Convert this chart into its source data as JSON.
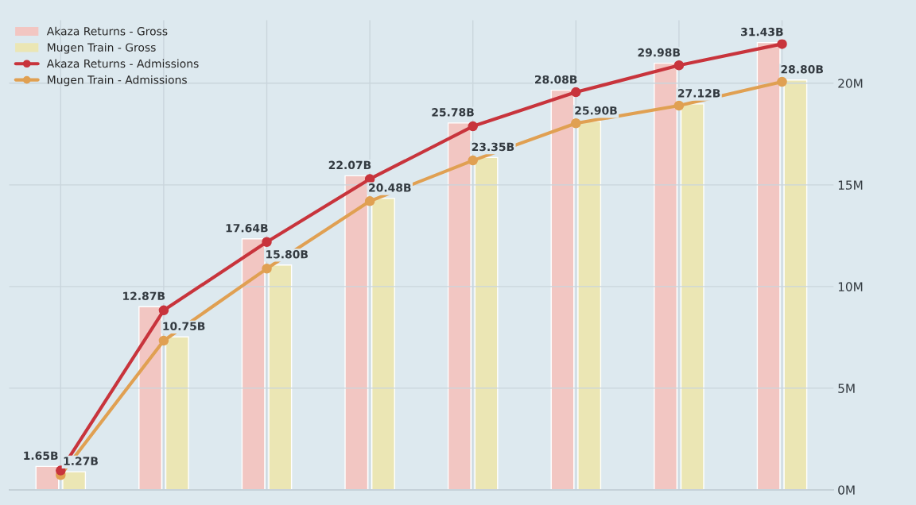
{
  "chart_data": {
    "type": "bar",
    "categories": [
      null,
      null,
      null,
      null,
      null,
      null,
      null,
      null
    ],
    "series": [
      {
        "name": "Akaza Returns - Gross",
        "color": "#f2c6c2",
        "values": [
          1.65,
          12.87,
          17.64,
          22.07,
          25.78,
          28.08,
          29.98,
          31.43
        ],
        "value_labels": [
          "1.65B",
          "12.87B",
          "17.64B",
          "22.07B",
          "25.78B",
          "28.08B",
          "29.98B",
          "31.43B"
        ]
      },
      {
        "name": "Mugen Train - Gross",
        "color": "#ebe6b4",
        "values": [
          1.27,
          10.75,
          15.8,
          20.48,
          23.35,
          25.9,
          27.12,
          28.8
        ],
        "value_labels": [
          "1.27B",
          "10.75B",
          "15.80B",
          "20.48B",
          "23.35B",
          "25.90B",
          "27.12B",
          "28.80B"
        ]
      },
      {
        "name": "Akaza Returns - Admissions",
        "type": "line",
        "axis": "y2",
        "color": "#c8343c",
        "marker": "circle",
        "values": [
          0.95,
          8.83,
          12.19,
          15.29,
          17.88,
          19.56,
          20.88,
          21.93
        ]
      },
      {
        "name": "Mugen Train - Admissions",
        "type": "line",
        "axis": "y2",
        "color": "#e0a052",
        "marker": "circle",
        "values": [
          0.73,
          7.34,
          10.88,
          14.2,
          16.2,
          18.03,
          18.9,
          20.07
        ]
      }
    ],
    "y2lim": [
      0,
      23.1
    ],
    "y2ticks": [
      {
        "value": 0,
        "label": "0M"
      },
      {
        "value": 5,
        "label": "5M"
      },
      {
        "value": 10,
        "label": "10M"
      },
      {
        "value": 15,
        "label": "15M"
      },
      {
        "value": 20,
        "label": "20M"
      }
    ],
    "tick_labels": "y2",
    "grid": true,
    "legend": "top left"
  }
}
